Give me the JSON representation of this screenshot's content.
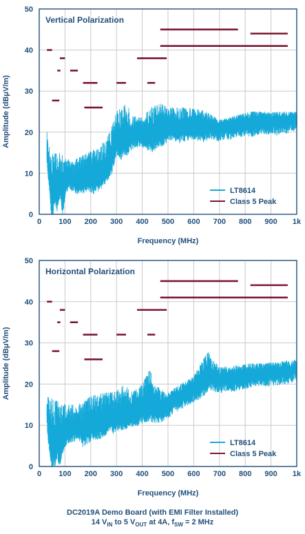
{
  "colors": {
    "axis": "#1f4e79",
    "grid": "#c9c9c9",
    "lt8614": "#14a9d8",
    "limit": "#7b1730"
  },
  "caption": {
    "line1": "DC2019A Demo Board (with EMI Filter Installed)",
    "line2_parts": [
      "14 V",
      "IN",
      " to 5 V",
      "OUT",
      " at 4A, f",
      "SW",
      " = 2 MHz"
    ]
  },
  "chart_data": [
    {
      "type": "line",
      "annotation": "Vertical Polarization",
      "xlabel": "Frequency (MHz)",
      "ylabel_parts": [
        "Amplitude (dB",
        "μ",
        "V/m)"
      ],
      "xlim": [
        0,
        1000
      ],
      "ylim": [
        0,
        50
      ],
      "x_ticks": [
        0,
        100,
        200,
        300,
        400,
        500,
        600,
        700,
        800,
        900,
        1000
      ],
      "x_tick_labels": [
        "0",
        "100",
        "200",
        "300",
        "400",
        "500",
        "600",
        "700",
        "800",
        "900",
        "1k"
      ],
      "y_ticks": [
        0,
        10,
        20,
        30,
        40,
        50
      ],
      "y_tick_labels": [
        "0",
        "10",
        "20",
        "30",
        "40",
        "50"
      ],
      "grid": true,
      "legend_position": "bottom-right",
      "series": [
        {
          "name": "LT8614",
          "style": "noisy-line",
          "points": [
            [
              30,
              15
            ],
            [
              35,
              12
            ],
            [
              40,
              9
            ],
            [
              45,
              4
            ],
            [
              50,
              1
            ],
            [
              55,
              3
            ],
            [
              60,
              6
            ],
            [
              70,
              4
            ],
            [
              80,
              7
            ],
            [
              90,
              3
            ],
            [
              100,
              7
            ],
            [
              110,
              9
            ],
            [
              130,
              9
            ],
            [
              150,
              8
            ],
            [
              170,
              8.5
            ],
            [
              190,
              9
            ],
            [
              210,
              8
            ],
            [
              230,
              9
            ],
            [
              250,
              10
            ],
            [
              270,
              12
            ],
            [
              280,
              12.5
            ],
            [
              300,
              18
            ],
            [
              310,
              17
            ],
            [
              320,
              16.5
            ],
            [
              340,
              17.5
            ],
            [
              360,
              19
            ],
            [
              380,
              19.5
            ],
            [
              400,
              19.5
            ],
            [
              420,
              19
            ],
            [
              440,
              18.5
            ],
            [
              460,
              19.5
            ],
            [
              480,
              20
            ],
            [
              500,
              21
            ],
            [
              520,
              21.5
            ],
            [
              540,
              20.5
            ],
            [
              560,
              21
            ],
            [
              580,
              21
            ],
            [
              600,
              21.5
            ],
            [
              620,
              21
            ],
            [
              640,
              21
            ],
            [
              660,
              21.5
            ],
            [
              680,
              21.5
            ],
            [
              700,
              21
            ],
            [
              720,
              21.5
            ],
            [
              740,
              21.5
            ],
            [
              760,
              22
            ],
            [
              780,
              22
            ],
            [
              800,
              22.5
            ],
            [
              820,
              22
            ],
            [
              840,
              22.5
            ],
            [
              860,
              23
            ],
            [
              880,
              22.5
            ],
            [
              900,
              23
            ],
            [
              920,
              22.5
            ],
            [
              940,
              23
            ],
            [
              960,
              23
            ],
            [
              980,
              23.5
            ],
            [
              1000,
              24
            ]
          ],
          "peaks": [
            [
              30,
              20
            ],
            [
              35,
              16.5
            ],
            [
              130,
              13
            ],
            [
              235,
              16.5
            ],
            [
              275,
              20
            ],
            [
              300,
              25
            ],
            [
              340,
              27
            ],
            [
              362,
              24
            ],
            [
              400,
              23.5
            ],
            [
              432,
              26
            ],
            [
              470,
              27
            ],
            [
              500,
              26
            ],
            [
              550,
              26
            ],
            [
              600,
              26
            ],
            [
              650,
              25
            ],
            [
              700,
              23
            ],
            [
              760,
              24
            ],
            [
              820,
              25
            ],
            [
              870,
              25
            ],
            [
              940,
              25
            ],
            [
              1000,
              25
            ]
          ]
        },
        {
          "name": "Class 5 Peak",
          "style": "segments",
          "segments": [
            [
              30,
              50,
              40
            ],
            [
              50,
              78,
              27.7
            ],
            [
              70,
              82,
              35
            ],
            [
              80,
              100,
              38
            ],
            [
              120,
              150,
              35
            ],
            [
              170,
              226,
              32
            ],
            [
              175,
              246,
              26
            ],
            [
              300,
              337,
              32
            ],
            [
              380,
              495,
              38
            ],
            [
              420,
              450,
              32
            ],
            [
              470,
              772,
              45
            ],
            [
              470,
              965,
              41
            ],
            [
              820,
              965,
              44
            ]
          ]
        }
      ]
    },
    {
      "type": "line",
      "annotation": "Horizontal Polarization",
      "xlabel": "Frequency (MHz)",
      "ylabel_parts": [
        "Amplitude (dB",
        "μ",
        "V/m)"
      ],
      "xlim": [
        0,
        1000
      ],
      "ylim": [
        0,
        50
      ],
      "x_ticks": [
        0,
        100,
        200,
        300,
        400,
        500,
        600,
        700,
        800,
        900,
        1000
      ],
      "x_tick_labels": [
        "0",
        "100",
        "200",
        "300",
        "400",
        "500",
        "600",
        "700",
        "800",
        "900",
        "1k"
      ],
      "y_ticks": [
        0,
        10,
        20,
        30,
        40,
        50
      ],
      "y_tick_labels": [
        "0",
        "10",
        "20",
        "30",
        "40",
        "50"
      ],
      "grid": true,
      "legend_position": "bottom-right",
      "series": [
        {
          "name": "LT8614",
          "style": "noisy-line",
          "points": [
            [
              30,
              13
            ],
            [
              35,
              9
            ],
            [
              40,
              7
            ],
            [
              45,
              4
            ],
            [
              50,
              1
            ],
            [
              55,
              4
            ],
            [
              60,
              3
            ],
            [
              70,
              5
            ],
            [
              80,
              3
            ],
            [
              90,
              6
            ],
            [
              100,
              8
            ],
            [
              110,
              9
            ],
            [
              130,
              9
            ],
            [
              150,
              10
            ],
            [
              170,
              8
            ],
            [
              190,
              9
            ],
            [
              210,
              9.5
            ],
            [
              230,
              10
            ],
            [
              250,
              10
            ],
            [
              270,
              12
            ],
            [
              290,
              11
            ],
            [
              310,
              12
            ],
            [
              330,
              12
            ],
            [
              350,
              13
            ],
            [
              370,
              13
            ],
            [
              390,
              13.5
            ],
            [
              410,
              14
            ],
            [
              430,
              14
            ],
            [
              450,
              14
            ],
            [
              470,
              14
            ],
            [
              500,
              15
            ],
            [
              530,
              16.5
            ],
            [
              560,
              17.5
            ],
            [
              590,
              18.5
            ],
            [
              620,
              19.5
            ],
            [
              640,
              20.5
            ],
            [
              660,
              22
            ],
            [
              680,
              21.5
            ],
            [
              700,
              21
            ],
            [
              720,
              21.5
            ],
            [
              740,
              21.5
            ],
            [
              760,
              21.5
            ],
            [
              780,
              22
            ],
            [
              800,
              22
            ],
            [
              820,
              22.5
            ],
            [
              840,
              22.5
            ],
            [
              860,
              23
            ],
            [
              880,
              22.5
            ],
            [
              900,
              23
            ],
            [
              920,
              23
            ],
            [
              940,
              23
            ],
            [
              960,
              23.5
            ],
            [
              980,
              23.5
            ],
            [
              1000,
              24
            ]
          ],
          "peaks": [
            [
              30,
              17
            ],
            [
              100,
              15
            ],
            [
              150,
              15
            ],
            [
              200,
              17
            ],
            [
              250,
              18
            ],
            [
              290,
              18
            ],
            [
              330,
              20
            ],
            [
              362,
              18
            ],
            [
              400,
              20
            ],
            [
              432,
              24
            ],
            [
              440,
              20
            ],
            [
              500,
              18
            ],
            [
              550,
              20
            ],
            [
              600,
              22
            ],
            [
              655,
              28
            ],
            [
              700,
              24
            ],
            [
              760,
              24.5
            ],
            [
              820,
              25
            ],
            [
              870,
              25
            ],
            [
              940,
              25.5
            ],
            [
              1000,
              26
            ]
          ]
        },
        {
          "name": "Class 5 Peak",
          "style": "segments",
          "segments": [
            [
              30,
              50,
              40
            ],
            [
              50,
              78,
              28
            ],
            [
              70,
              82,
              35
            ],
            [
              80,
              100,
              38
            ],
            [
              120,
              150,
              35
            ],
            [
              170,
              226,
              32
            ],
            [
              175,
              246,
              26
            ],
            [
              300,
              337,
              32
            ],
            [
              380,
              495,
              38
            ],
            [
              420,
              450,
              32
            ],
            [
              470,
              772,
              45
            ],
            [
              470,
              965,
              41
            ],
            [
              820,
              965,
              44
            ]
          ]
        }
      ]
    }
  ]
}
